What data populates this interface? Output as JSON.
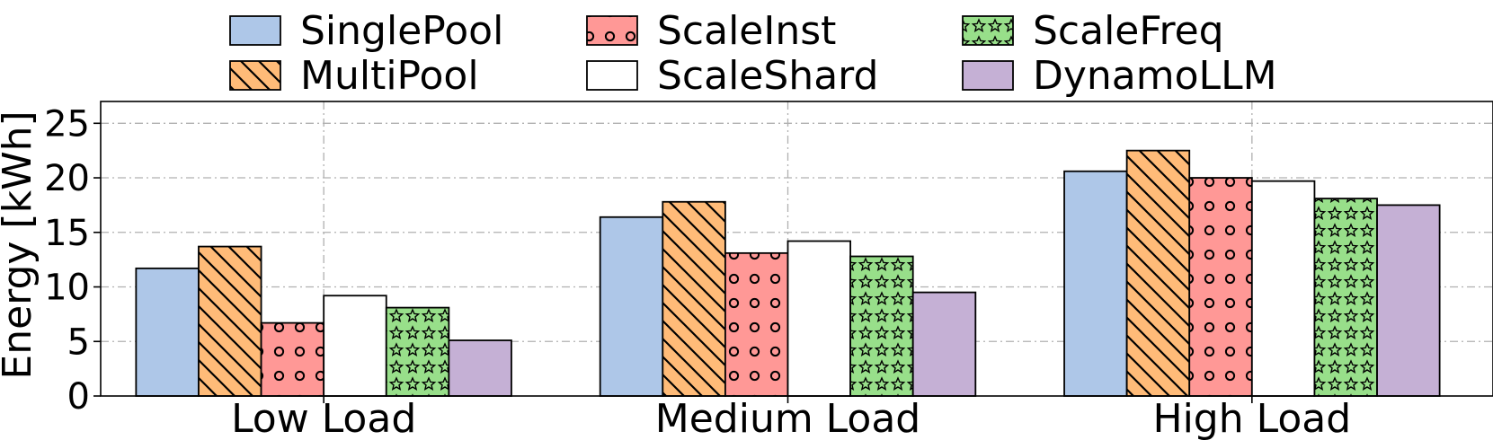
{
  "chart_data": {
    "type": "bar",
    "categories": [
      "Low Load",
      "Medium Load",
      "High Load"
    ],
    "series": [
      {
        "name": "SinglePool",
        "values": [
          11.7,
          16.4,
          20.6
        ],
        "color": "#aec7e8",
        "pattern": "none"
      },
      {
        "name": "MultiPool",
        "values": [
          13.7,
          17.8,
          22.5
        ],
        "color": "#ffbb78",
        "pattern": "diagonal"
      },
      {
        "name": "ScaleInst",
        "values": [
          6.7,
          13.1,
          20.0
        ],
        "color": "#ff9896",
        "pattern": "circles"
      },
      {
        "name": "ScaleShard",
        "values": [
          9.2,
          14.2,
          19.7
        ],
        "color": "#ffffff",
        "pattern": "none"
      },
      {
        "name": "ScaleFreq",
        "values": [
          8.1,
          12.8,
          18.1
        ],
        "color": "#98df8a",
        "pattern": "stars"
      },
      {
        "name": "DynamoLLM",
        "values": [
          5.1,
          9.5,
          17.5
        ],
        "color": "#c5b0d5",
        "pattern": "none"
      }
    ],
    "title": "",
    "xlabel": "",
    "ylabel": "Energy [kWh]",
    "ylim": [
      0,
      27
    ],
    "yticks": [
      0,
      5,
      10,
      15,
      20,
      25
    ],
    "grid": true,
    "legend_position": "top",
    "legend_columns": 3
  }
}
